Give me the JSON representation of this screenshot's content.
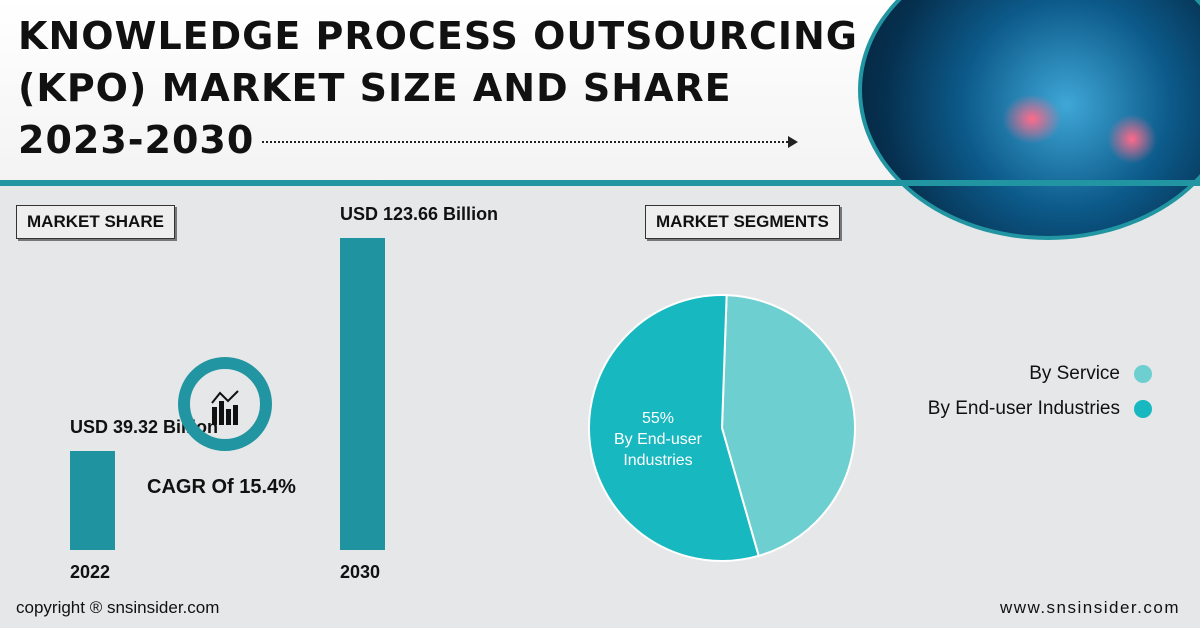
{
  "title_lines": [
    "KNOWLEDGE PROCESS OUTSOURCING",
    "(KPO) MARKET SIZE AND SHARE",
    "2023-2030"
  ],
  "market_share_label": "MARKET SHARE",
  "market_segments_label": "MARKET SEGMENTS",
  "cagr": "CAGR Of 15.4%",
  "footer": {
    "copyright": "copyright ® snsinsider.com",
    "website": "www.snsinsider.com"
  },
  "chart_data": [
    {
      "type": "bar",
      "categories": [
        "2022",
        "2030"
      ],
      "values": [
        39.32,
        123.66
      ],
      "data_labels": [
        "USD 39.32 Billion",
        "USD 123.66 Billion"
      ],
      "ylabel": "USD Billion",
      "color": "#2093a0"
    },
    {
      "type": "pie",
      "labels": [
        "By Service",
        "By End-user Industries"
      ],
      "values": [
        45,
        55
      ],
      "colors": [
        "#6ecfd0",
        "#17b8c0"
      ],
      "slice_label": {
        "value": "55%",
        "text_lines": [
          "By End-user",
          "Industries"
        ]
      },
      "legend": "right"
    }
  ]
}
